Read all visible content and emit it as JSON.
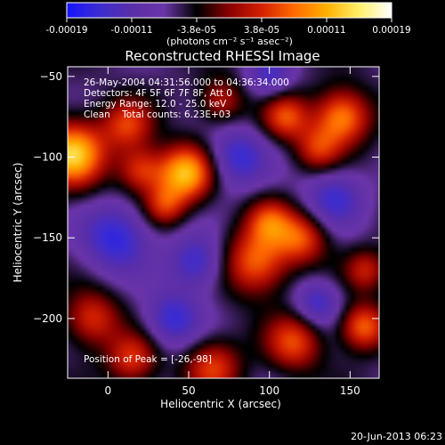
{
  "chart_data": {
    "type": "heatmap",
    "title": "Reconstructed RHESSI Image",
    "xlabel": "Heliocentric X (arcsec)",
    "ylabel": "Heliocentric Y (arcsec)",
    "xlim": [
      -25,
      168
    ],
    "ylim": [
      -237,
      -44
    ],
    "x_ticks": [
      0,
      50,
      100,
      150
    ],
    "y_ticks": [
      -50,
      -100,
      -150,
      -200
    ],
    "colorbar": {
      "unit_label": "(photons cm⁻² s⁻¹ asec⁻²)",
      "ticks": [
        "-0.00019",
        "-0.00011",
        "-3.8e-05",
        "3.8e-05",
        "0.00011",
        "0.00019"
      ],
      "range": [
        -0.00019,
        0.00019
      ],
      "colors": [
        "#1414ff",
        "#3c2cd0",
        "#5a2ea8",
        "#6b35a8",
        "#000000",
        "#8a0000",
        "#d42000",
        "#ff6a00",
        "#ffb000",
        "#fff06a",
        "#ffffff"
      ]
    },
    "annotations": [
      "26-May-2004 04:31:56.000 to 04:36:34.000",
      "Detectors: 4F 5F 6F 7F 8F, Att 0",
      "Energy Range: 12.0 - 25.0 keV",
      "Clean    Total counts: 6.23E+03"
    ],
    "peak_label": "Position of Peak = [-26,-98]",
    "peak_position": [
      -26,
      -98
    ],
    "sources": [
      {
        "x": -22,
        "y": -98,
        "sigma": 14,
        "amp": 1.0
      },
      {
        "x": 12,
        "y": -80,
        "sigma": 11,
        "amp": 0.55
      },
      {
        "x": 20,
        "y": -108,
        "sigma": 10,
        "amp": 0.55
      },
      {
        "x": 48,
        "y": -110,
        "sigma": 12,
        "amp": 0.95
      },
      {
        "x": 35,
        "y": -130,
        "sigma": 9,
        "amp": 0.5
      },
      {
        "x": 92,
        "y": -165,
        "sigma": 14,
        "amp": 0.7
      },
      {
        "x": 100,
        "y": -140,
        "sigma": 10,
        "amp": 0.55
      },
      {
        "x": 120,
        "y": -150,
        "sigma": 11,
        "amp": 0.6
      },
      {
        "x": 110,
        "y": -75,
        "sigma": 10,
        "amp": 0.6
      },
      {
        "x": 145,
        "y": -75,
        "sigma": 12,
        "amp": 0.8
      },
      {
        "x": 130,
        "y": -95,
        "sigma": 10,
        "amp": 0.5
      },
      {
        "x": 70,
        "y": -65,
        "sigma": 10,
        "amp": 0.45
      },
      {
        "x": -10,
        "y": -200,
        "sigma": 12,
        "amp": 0.55
      },
      {
        "x": 15,
        "y": -225,
        "sigma": 11,
        "amp": 0.55
      },
      {
        "x": 65,
        "y": -230,
        "sigma": 12,
        "amp": 0.55
      },
      {
        "x": 115,
        "y": -215,
        "sigma": 12,
        "amp": 0.6
      },
      {
        "x": 158,
        "y": -205,
        "sigma": 10,
        "amp": 0.7
      },
      {
        "x": 160,
        "y": -170,
        "sigma": 9,
        "amp": 0.45
      },
      {
        "x": 55,
        "y": -165,
        "sigma": 12,
        "amp": -0.5
      },
      {
        "x": 5,
        "y": -150,
        "sigma": 15,
        "amp": -0.55
      },
      {
        "x": 80,
        "y": -100,
        "sigma": 13,
        "amp": -0.5
      },
      {
        "x": 140,
        "y": -125,
        "sigma": 13,
        "amp": -0.45
      },
      {
        "x": 40,
        "y": -200,
        "sigma": 12,
        "amp": -0.5
      },
      {
        "x": 130,
        "y": -190,
        "sigma": 10,
        "amp": -0.45
      },
      {
        "x": 100,
        "y": -50,
        "sigma": 10,
        "amp": -0.4
      }
    ]
  },
  "footer": {
    "timestamp": "20-Jun-2013 06:23"
  }
}
